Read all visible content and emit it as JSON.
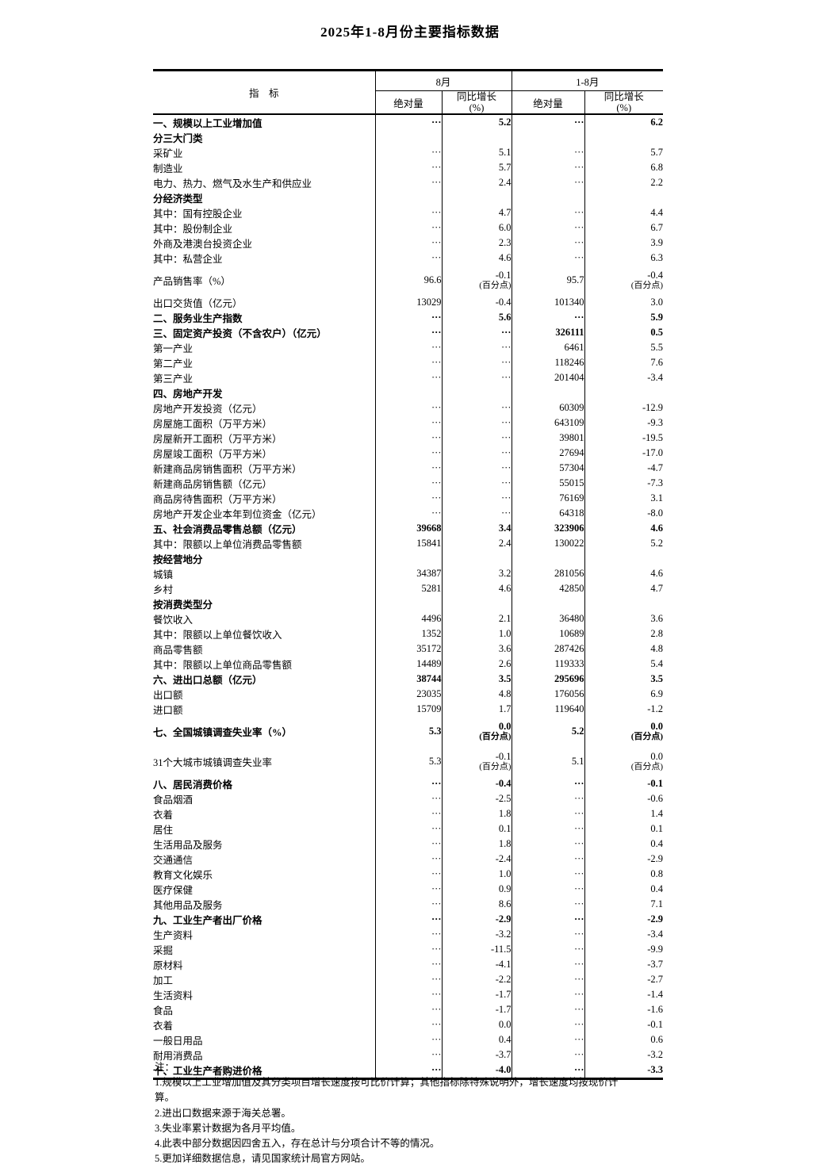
{
  "page": {
    "title": "2025年1-8月份主要指标数据"
  },
  "table": {
    "header": {
      "indicator": "指　标",
      "group_month": "8月",
      "group_cum": "1-8月",
      "abs": "绝对量",
      "yoy": "同比增长\n(%)"
    },
    "rows": [
      {
        "label": "一、规模以上工业增加值",
        "indent": 0,
        "bold": true,
        "cells": [
          "···",
          "5.2",
          "···",
          "6.2"
        ]
      },
      {
        "label": "分三大门类",
        "indent": 0,
        "bold": true,
        "cells": [
          "",
          "",
          "",
          ""
        ]
      },
      {
        "label": "采矿业",
        "indent": 0,
        "bold": false,
        "cells": [
          "···",
          "5.1",
          "···",
          "5.7"
        ]
      },
      {
        "label": "制造业",
        "indent": 0,
        "bold": false,
        "cells": [
          "···",
          "5.7",
          "···",
          "6.8"
        ]
      },
      {
        "label": "电力、热力、燃气及水生产和供应业",
        "indent": 0,
        "bold": false,
        "cells": [
          "···",
          "2.4",
          "···",
          "2.2"
        ]
      },
      {
        "label": "分经济类型",
        "indent": 0,
        "bold": true,
        "cells": [
          "",
          "",
          "",
          ""
        ]
      },
      {
        "label": "其中：国有控股企业",
        "indent": 0,
        "bold": false,
        "cells": [
          "···",
          "4.7",
          "···",
          "4.4"
        ]
      },
      {
        "label": "其中：股份制企业",
        "indent": 0,
        "bold": false,
        "cells": [
          "···",
          "6.0",
          "···",
          "6.7"
        ]
      },
      {
        "label": "外商及港澳台投资企业",
        "indent": 3,
        "bold": false,
        "cells": [
          "···",
          "2.3",
          "···",
          "3.9"
        ]
      },
      {
        "label": "其中：私营企业",
        "indent": 0,
        "bold": false,
        "cells": [
          "···",
          "4.6",
          "···",
          "6.3"
        ]
      },
      {
        "label": "产品销售率（%）",
        "indent": 0,
        "bold": false,
        "cells": [
          "96.6",
          {
            "v": "-0.1",
            "u": "(百分点)"
          },
          "95.7",
          {
            "v": "-0.4",
            "u": "(百分点)"
          }
        ]
      },
      {
        "label": "出口交货值（亿元）",
        "indent": 0,
        "bold": false,
        "cells": [
          "13029",
          "-0.4",
          "101340",
          "3.0"
        ]
      },
      {
        "label": "二、服务业生产指数",
        "indent": 0,
        "bold": true,
        "cells": [
          "···",
          "5.6",
          "···",
          "5.9"
        ]
      },
      {
        "label": "三、固定资产投资（不含农户）（亿元）",
        "indent": 0,
        "bold": true,
        "cells": [
          "···",
          "···",
          "326111",
          "0.5"
        ]
      },
      {
        "label": "第一产业",
        "indent": 0,
        "bold": false,
        "cells": [
          "···",
          "···",
          "6461",
          "5.5"
        ]
      },
      {
        "label": "第二产业",
        "indent": 0,
        "bold": false,
        "cells": [
          "···",
          "···",
          "118246",
          "7.6"
        ]
      },
      {
        "label": "第三产业",
        "indent": 0,
        "bold": false,
        "cells": [
          "···",
          "···",
          "201404",
          "-3.4"
        ]
      },
      {
        "label": "四、房地产开发",
        "indent": 0,
        "bold": true,
        "cells": [
          "",
          "",
          "",
          ""
        ]
      },
      {
        "label": "房地产开发投资（亿元）",
        "indent": 0,
        "bold": false,
        "cells": [
          "···",
          "···",
          "60309",
          "-12.9"
        ]
      },
      {
        "label": "房屋施工面积（万平方米）",
        "indent": 0,
        "bold": false,
        "cells": [
          "···",
          "···",
          "643109",
          "-9.3"
        ]
      },
      {
        "label": "房屋新开工面积（万平方米）",
        "indent": 0,
        "bold": false,
        "cells": [
          "···",
          "···",
          "39801",
          "-19.5"
        ]
      },
      {
        "label": "房屋竣工面积（万平方米）",
        "indent": 0,
        "bold": false,
        "cells": [
          "···",
          "···",
          "27694",
          "-17.0"
        ]
      },
      {
        "label": "新建商品房销售面积（万平方米）",
        "indent": 0,
        "bold": false,
        "cells": [
          "···",
          "···",
          "57304",
          "-4.7"
        ]
      },
      {
        "label": "新建商品房销售额（亿元）",
        "indent": 0,
        "bold": false,
        "cells": [
          "···",
          "···",
          "55015",
          "-7.3"
        ]
      },
      {
        "label": "商品房待售面积（万平方米）",
        "indent": 0,
        "bold": false,
        "cells": [
          "···",
          "···",
          "76169",
          "3.1"
        ]
      },
      {
        "label": "房地产开发企业本年到位资金（亿元）",
        "indent": 0,
        "bold": false,
        "cells": [
          "···",
          "···",
          "64318",
          "-8.0"
        ]
      },
      {
        "label": "五、社会消费品零售总额（亿元）",
        "indent": 0,
        "bold": true,
        "cells": [
          "39668",
          "3.4",
          "323906",
          "4.6"
        ]
      },
      {
        "label": "其中：限额以上单位消费品零售额",
        "indent": 0,
        "bold": false,
        "cells": [
          "15841",
          "2.4",
          "130022",
          "5.2"
        ]
      },
      {
        "label": "按经营地分",
        "indent": 0,
        "bold": true,
        "cells": [
          "",
          "",
          "",
          ""
        ]
      },
      {
        "label": "城镇",
        "indent": 0,
        "bold": false,
        "cells": [
          "34387",
          "3.2",
          "281056",
          "4.6"
        ]
      },
      {
        "label": "乡村",
        "indent": 0,
        "bold": false,
        "cells": [
          "5281",
          "4.6",
          "42850",
          "4.7"
        ]
      },
      {
        "label": "按消费类型分",
        "indent": 0,
        "bold": true,
        "cells": [
          "",
          "",
          "",
          ""
        ]
      },
      {
        "label": "餐饮收入",
        "indent": 0,
        "bold": false,
        "cells": [
          "4496",
          "2.1",
          "36480",
          "3.6"
        ]
      },
      {
        "label": "其中：限额以上单位餐饮收入",
        "indent": 0,
        "bold": false,
        "cells": [
          "1352",
          "1.0",
          "10689",
          "2.8"
        ]
      },
      {
        "label": "商品零售额",
        "indent": 0,
        "bold": false,
        "cells": [
          "35172",
          "3.6",
          "287426",
          "4.8"
        ]
      },
      {
        "label": "其中：限额以上单位商品零售额",
        "indent": 0,
        "bold": false,
        "cells": [
          "14489",
          "2.6",
          "119333",
          "5.4"
        ]
      },
      {
        "label": "六、进出口总额（亿元）",
        "indent": 0,
        "bold": true,
        "cells": [
          "38744",
          "3.5",
          "295696",
          "3.5"
        ]
      },
      {
        "label": "出口额",
        "indent": 2,
        "bold": false,
        "cells": [
          "23035",
          "4.8",
          "176056",
          "6.9"
        ]
      },
      {
        "label": "进口额",
        "indent": 2,
        "bold": false,
        "cells": [
          "15709",
          "1.7",
          "119640",
          "-1.2"
        ]
      },
      {
        "label": "七、全国城镇调查失业率（%）",
        "indent": 0,
        "bold": true,
        "cells": [
          "5.3",
          {
            "v": "0.0",
            "u": "(百分点)"
          },
          "5.2",
          {
            "v": "0.0",
            "u": "(百分点)"
          }
        ]
      },
      {
        "label": "31个大城市城镇调查失业率",
        "indent": 2,
        "bold": false,
        "cells": [
          "5.3",
          {
            "v": "-0.1",
            "u": "(百分点)"
          },
          "5.1",
          {
            "v": "0.0",
            "u": "(百分点)"
          }
        ]
      },
      {
        "label": "八、居民消费价格",
        "indent": 0,
        "bold": true,
        "cells": [
          "···",
          "-0.4",
          "···",
          "-0.1"
        ]
      },
      {
        "label": "食品烟酒",
        "indent": 1,
        "bold": false,
        "cells": [
          "···",
          "-2.5",
          "···",
          "-0.6"
        ]
      },
      {
        "label": "衣着",
        "indent": 1,
        "bold": false,
        "cells": [
          "···",
          "1.8",
          "···",
          "1.4"
        ]
      },
      {
        "label": "居住",
        "indent": 1,
        "bold": false,
        "cells": [
          "···",
          "0.1",
          "···",
          "0.1"
        ]
      },
      {
        "label": "生活用品及服务",
        "indent": 1,
        "bold": false,
        "cells": [
          "···",
          "1.8",
          "···",
          "0.4"
        ]
      },
      {
        "label": "交通通信",
        "indent": 1,
        "bold": false,
        "cells": [
          "···",
          "-2.4",
          "···",
          "-2.9"
        ]
      },
      {
        "label": "教育文化娱乐",
        "indent": 1,
        "bold": false,
        "cells": [
          "···",
          "1.0",
          "···",
          "0.8"
        ]
      },
      {
        "label": "医疗保健",
        "indent": 1,
        "bold": false,
        "cells": [
          "···",
          "0.9",
          "···",
          "0.4"
        ]
      },
      {
        "label": "其他用品及服务",
        "indent": 1,
        "bold": false,
        "cells": [
          "···",
          "8.6",
          "···",
          "7.1"
        ]
      },
      {
        "label": "九、工业生产者出厂价格",
        "indent": 0,
        "bold": true,
        "cells": [
          "···",
          "-2.9",
          "···",
          "-2.9"
        ]
      },
      {
        "label": "生产资料",
        "indent": 0,
        "bold": false,
        "cells": [
          "···",
          "-3.2",
          "···",
          "-3.4"
        ]
      },
      {
        "label": "采掘",
        "indent": 1,
        "bold": false,
        "cells": [
          "···",
          "-11.5",
          "···",
          "-9.9"
        ]
      },
      {
        "label": "原材料",
        "indent": 1,
        "bold": false,
        "cells": [
          "···",
          "-4.1",
          "···",
          "-3.7"
        ]
      },
      {
        "label": "加工",
        "indent": 1,
        "bold": false,
        "cells": [
          "···",
          "-2.2",
          "···",
          "-2.7"
        ]
      },
      {
        "label": "生活资料",
        "indent": 0,
        "bold": false,
        "cells": [
          "···",
          "-1.7",
          "···",
          "-1.4"
        ]
      },
      {
        "label": "食品",
        "indent": 1,
        "bold": false,
        "cells": [
          "···",
          "-1.7",
          "···",
          "-1.6"
        ]
      },
      {
        "label": "衣着",
        "indent": 1,
        "bold": false,
        "cells": [
          "···",
          "0.0",
          "···",
          "-0.1"
        ]
      },
      {
        "label": "一般日用品",
        "indent": 1,
        "bold": false,
        "cells": [
          "···",
          "0.4",
          "···",
          "0.6"
        ]
      },
      {
        "label": "耐用消费品",
        "indent": 1,
        "bold": false,
        "cells": [
          "···",
          "-3.7",
          "···",
          "-3.2"
        ]
      },
      {
        "label": "十、工业生产者购进价格",
        "indent": 0,
        "bold": true,
        "cells": [
          "···",
          "-4.0",
          "···",
          "-3.3"
        ]
      }
    ]
  },
  "notes": {
    "lines": [
      "注：",
      "1.规模以上工业增加值及其分类项目增长速度按可比价计算；其他指标除特殊说明外，增长速度均按现价计",
      "算。",
      "2.进出口数据来源于海关总署。",
      "3.失业率累计数据为各月平均值。",
      "4.此表中部分数据因四舍五入，存在总计与分项合计不等的情况。",
      "5.更加详细数据信息，请见国家统计局官方网站。"
    ]
  }
}
